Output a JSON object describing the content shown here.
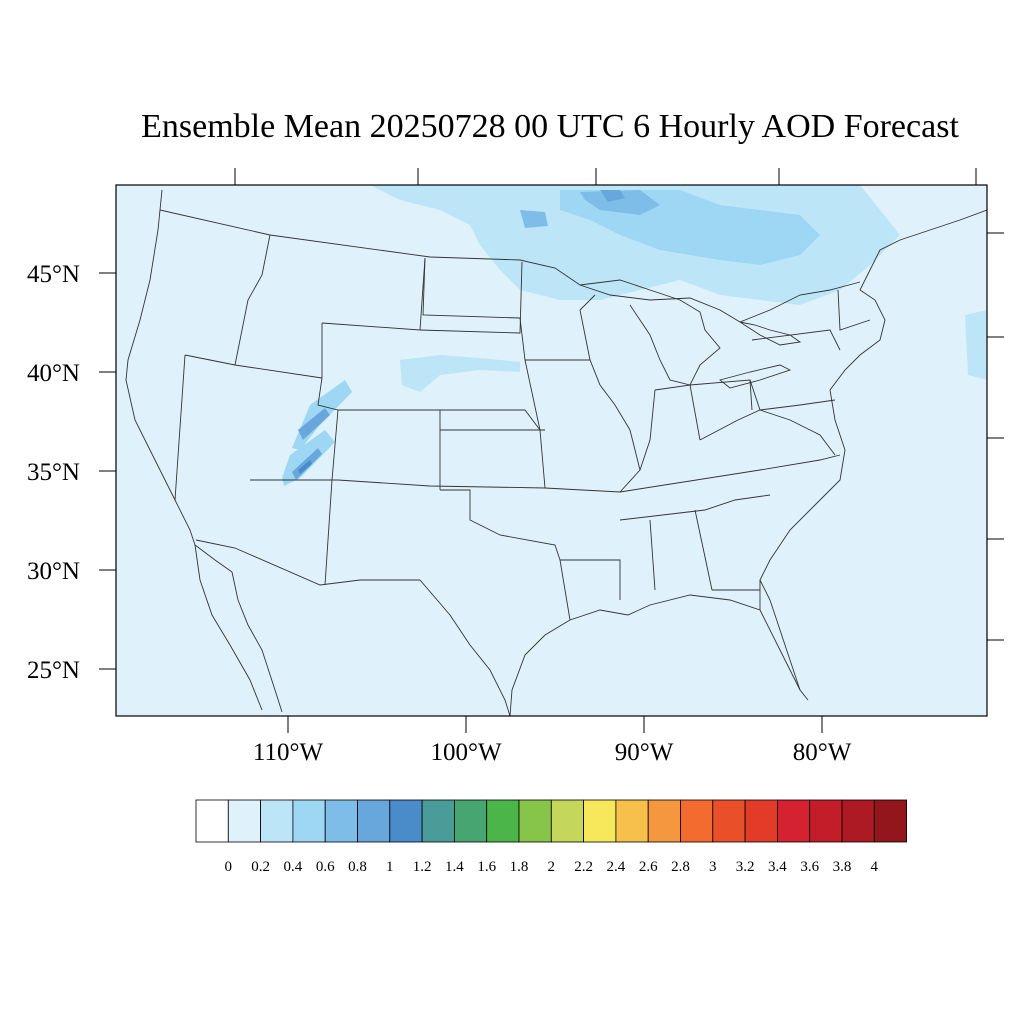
{
  "title": "Ensemble Mean 20250728 00 UTC 6 Hourly AOD Forecast",
  "map": {
    "lat_labels": [
      "45°N",
      "40°N",
      "35°N",
      "30°N",
      "25°N"
    ],
    "lon_labels": [
      "110°W",
      "100°W",
      "90°W",
      "80°W"
    ],
    "ocean_color": "#dff1fb",
    "land_base_color": "#dff1fb",
    "boundary_color": "#555555"
  },
  "colorbar": {
    "colors": [
      "#ffffff",
      "#dff1fb",
      "#bde5f8",
      "#9dd7f4",
      "#7ebde8",
      "#67a7db",
      "#4a8cca",
      "#4a9c9b",
      "#46a571",
      "#4bb54a",
      "#86c54a",
      "#c4d75a",
      "#f7e75a",
      "#f7c04a",
      "#f5973f",
      "#f36b2f",
      "#e9502a",
      "#e23c28",
      "#d42230",
      "#c31d2a",
      "#ad1a24",
      "#93161d"
    ],
    "labels": [
      "0",
      "0.2",
      "0.4",
      "0.6",
      "0.8",
      "1",
      "1.2",
      "1.4",
      "1.6",
      "1.8",
      "2",
      "2.2",
      "2.4",
      "2.6",
      "2.8",
      "3",
      "3.2",
      "3.4",
      "3.6",
      "3.8",
      "4"
    ]
  }
}
